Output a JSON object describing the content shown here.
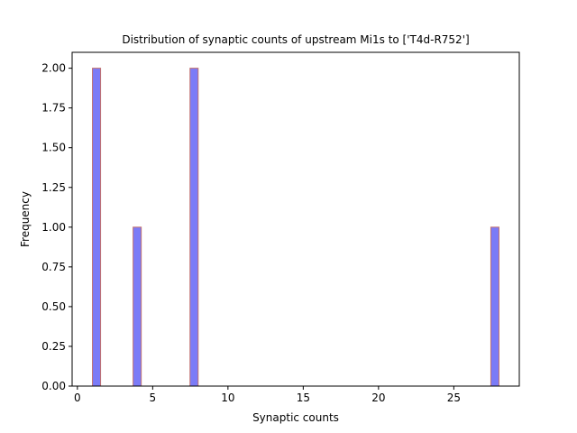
{
  "chart_data": {
    "type": "bar",
    "title": "Distribution of synaptic counts of upstream Mi1s to ['T4d-R752']",
    "xlabel": "Synaptic counts",
    "ylabel": "Frequency",
    "xlim": [
      -0.35,
      29.35
    ],
    "ylim": [
      0,
      2.1
    ],
    "xticks": [
      0,
      5,
      10,
      15,
      20,
      25
    ],
    "xtick_labels": [
      "0",
      "5",
      "10",
      "15",
      "20",
      "25"
    ],
    "yticks": [
      0.0,
      0.25,
      0.5,
      0.75,
      1.0,
      1.25,
      1.5,
      1.75,
      2.0
    ],
    "ytick_labels": [
      "0.00",
      "0.25",
      "0.50",
      "0.75",
      "1.00",
      "1.25",
      "1.50",
      "1.75",
      "2.00"
    ],
    "bars": [
      {
        "x0": 1.0,
        "x1": 1.54,
        "value": 2
      },
      {
        "x0": 3.7,
        "x1": 4.24,
        "value": 1
      },
      {
        "x0": 7.48,
        "x1": 8.02,
        "value": 2
      },
      {
        "x0": 27.46,
        "x1": 28.0,
        "value": 1
      }
    ],
    "bar_fill": "#7b7bf7",
    "bar_edge": "#c07070",
    "grid": false
  }
}
